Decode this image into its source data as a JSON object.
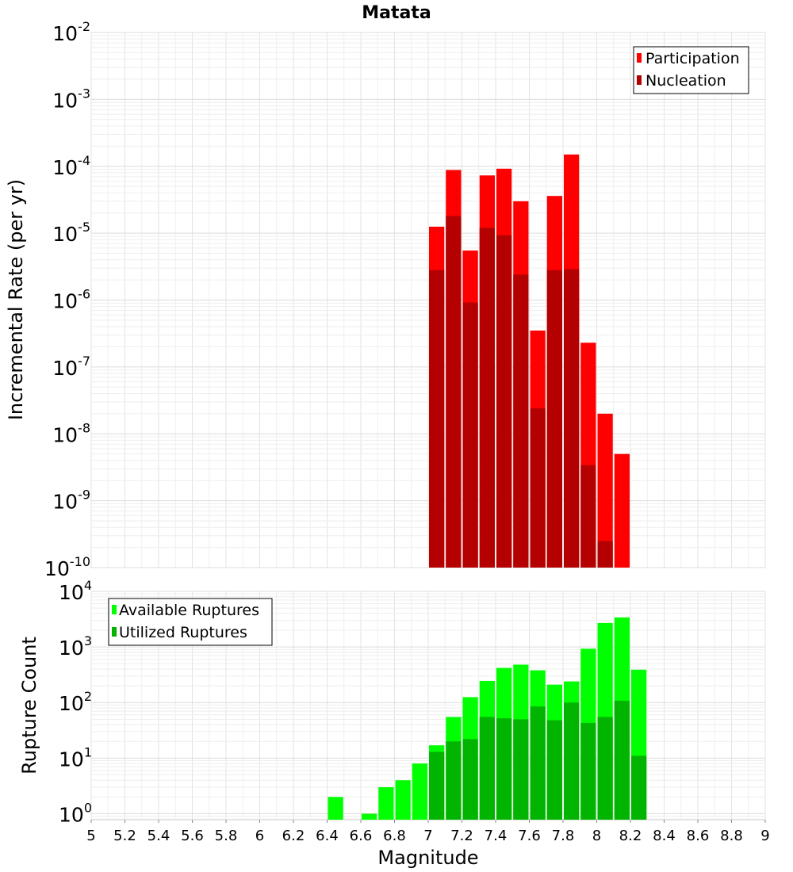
{
  "chart_data": [
    {
      "type": "bar",
      "title": "Matata",
      "xlabel": "",
      "ylabel": "Incremental Rate (per yr)",
      "y_scale": "log",
      "ylim": [
        1e-10,
        0.01
      ],
      "xlim": [
        5,
        9
      ],
      "grid": true,
      "legend_placement": "top-right",
      "x": [
        7.05,
        7.15,
        7.25,
        7.35,
        7.45,
        7.55,
        7.65,
        7.75,
        7.85,
        7.95,
        8.05,
        8.15
      ],
      "series": [
        {
          "name": "Participation",
          "color": "#ff0000",
          "values": [
            1.25e-05,
            8.8e-05,
            5.5e-06,
            7.3e-05,
            9.2e-05,
            3e-05,
            3.5e-07,
            3.6e-05,
            0.00015,
            2.3e-07,
            2e-08,
            5e-09
          ]
        },
        {
          "name": "Nucleation",
          "color": "#b40000",
          "values": [
            2.8e-06,
            1.8e-05,
            9.2e-07,
            1.2e-05,
            9.3e-06,
            2.4e-06,
            2.4e-08,
            2.8e-06,
            2.9e-06,
            3.4e-09,
            2.5e-10,
            null
          ]
        }
      ],
      "y_ticks": [
        {
          "base": "10",
          "exp": "-2"
        },
        {
          "base": "10",
          "exp": "-3"
        },
        {
          "base": "10",
          "exp": "-4"
        },
        {
          "base": "10",
          "exp": "-5"
        },
        {
          "base": "10",
          "exp": "-6"
        },
        {
          "base": "10",
          "exp": "-7"
        },
        {
          "base": "10",
          "exp": "-8"
        },
        {
          "base": "10",
          "exp": "-9"
        },
        {
          "base": "10",
          "exp": "-10"
        }
      ]
    },
    {
      "type": "bar",
      "title": "",
      "xlabel": "Magnitude",
      "ylabel": "Rupture Count",
      "y_scale": "log",
      "ylim": [
        0.78,
        10000
      ],
      "xlim": [
        5,
        9
      ],
      "grid": true,
      "legend_placement": "top-left",
      "x": [
        6.45,
        6.65,
        6.75,
        6.85,
        6.95,
        7.05,
        7.15,
        7.25,
        7.35,
        7.45,
        7.55,
        7.65,
        7.75,
        7.85,
        7.95,
        8.05,
        8.15,
        8.25
      ],
      "series": [
        {
          "name": "Available Ruptures",
          "color": "#00ff00",
          "values": [
            2,
            1,
            3,
            4,
            8,
            17,
            55,
            125,
            245,
            420,
            480,
            380,
            210,
            240,
            930,
            2700,
            3400,
            390
          ]
        },
        {
          "name": "Utilized Ruptures",
          "color": "#00b400",
          "values": [
            null,
            null,
            null,
            null,
            null,
            13,
            20,
            22,
            55,
            52,
            50,
            85,
            48,
            100,
            43,
            55,
            108,
            11
          ]
        }
      ],
      "y_ticks": [
        {
          "base": "10",
          "exp": "4"
        },
        {
          "base": "10",
          "exp": "3"
        },
        {
          "base": "10",
          "exp": "2"
        },
        {
          "base": "10",
          "exp": "1"
        },
        {
          "base": "10",
          "exp": "0"
        }
      ],
      "x_tick_labels": [
        "5",
        "5.2",
        "5.4",
        "5.6",
        "5.8",
        "6",
        "6.2",
        "6.4",
        "6.6",
        "6.8",
        "7",
        "7.2",
        "7.4",
        "7.6",
        "7.8",
        "8",
        "8.2",
        "8.4",
        "8.6",
        "8.8",
        "9"
      ]
    }
  ]
}
